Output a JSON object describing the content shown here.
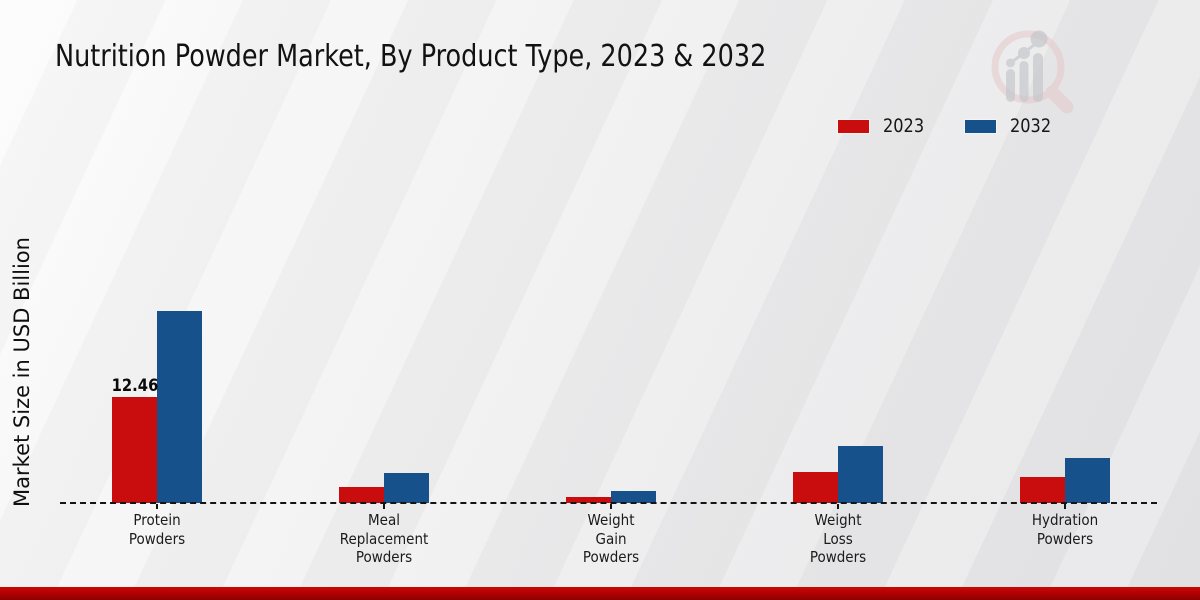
{
  "page": {
    "title": "Nutrition Powder Market, By Product Type, 2023 & 2032"
  },
  "legend": {
    "items": [
      {
        "label": "2023",
        "color": "#c90d0e"
      },
      {
        "label": "2032",
        "color": "#17518c"
      }
    ]
  },
  "chart_data": {
    "type": "bar",
    "title": "Nutrition Powder Market, By Product Type, 2023 & 2032",
    "xlabel": "",
    "ylabel": "Market Size in USD Billion",
    "categories": [
      "Protein Powders",
      "Meal Replacement Powders",
      "Weight Gain Powders",
      "Weight Loss Powders",
      "Hydration Powders"
    ],
    "series": [
      {
        "name": "2023",
        "color": "#c90d0e",
        "values": [
          12.46,
          1.9,
          0.7,
          3.6,
          3.1
        ]
      },
      {
        "name": "2032",
        "color": "#17518c",
        "values": [
          22.6,
          3.5,
          1.4,
          6.7,
          5.3
        ]
      }
    ],
    "annotations": [
      {
        "category_index": 0,
        "series_index": 0,
        "text": "12.46"
      }
    ],
    "ylim": [
      0,
      26
    ],
    "grid": false,
    "baseline_style": "dashed",
    "legend_position": "top-right"
  },
  "watermark": {
    "name": "market-research-future-logo"
  },
  "footer": {
    "bar_color": "#b30202"
  }
}
